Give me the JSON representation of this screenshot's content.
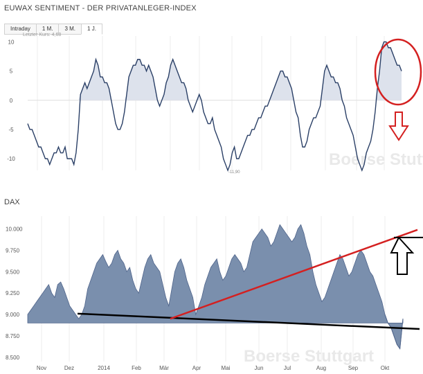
{
  "header": {
    "title": "EUWAX SENTIMENT - DER PRIVATANLEGER-INDEX",
    "tabs": [
      "Intraday",
      "1 M.",
      "3 M.",
      "1 J."
    ],
    "active_tab": "1 J.",
    "last_price": "Letzter Kurs: 4,68"
  },
  "dax_header": {
    "title": "DAX"
  },
  "watermark": "Boerse Stuttgart",
  "min_label": "-11,90",
  "colors": {
    "sentiment_line": "#2a3f66",
    "sentiment_fill": "#dde2ec",
    "dax_fill": "#7a8fad",
    "dax_stroke": "#4e638a",
    "annotation_red": "#d42020",
    "annotation_black": "#000000"
  },
  "chart_data": [
    {
      "type": "line",
      "ylim": [
        -12,
        11
      ],
      "yticks": [
        10,
        5,
        0,
        -5,
        -10
      ],
      "ytick_labels": [
        "10",
        "5",
        "0",
        "-5",
        "-10"
      ],
      "grid": "vertical",
      "series": [
        {
          "values": [
            -4,
            -5,
            -5,
            -6,
            -7,
            -8,
            -8,
            -9,
            -10,
            -10,
            -11,
            -10,
            -9,
            -9,
            -8,
            -9,
            -9,
            -8,
            -10,
            -10,
            -10,
            -11,
            -9,
            -5,
            1,
            2,
            3,
            2,
            3,
            4,
            5,
            7,
            6,
            4,
            4,
            3,
            3,
            2,
            0,
            -2,
            -4,
            -5,
            -5,
            -4,
            -2,
            1,
            4,
            5,
            6,
            6,
            7,
            7,
            6,
            6,
            5,
            6,
            5,
            4,
            2,
            0,
            -1,
            0,
            1,
            3,
            4,
            6,
            7,
            6,
            5,
            4,
            3,
            3,
            2,
            0,
            -1,
            -2,
            -1,
            0,
            1,
            0,
            -2,
            -3,
            -4,
            -4,
            -3,
            -5,
            -6,
            -7,
            -8,
            -10,
            -11,
            -12,
            -11,
            -9,
            -8,
            -10,
            -10,
            -9,
            -8,
            -7,
            -6,
            -6,
            -5,
            -5,
            -4,
            -3,
            -3,
            -2,
            -1,
            -1,
            0,
            1,
            2,
            3,
            4,
            5,
            5,
            4,
            4,
            3,
            2,
            0,
            -2,
            -3,
            -6,
            -8,
            -8,
            -7,
            -5,
            -4,
            -3,
            -3,
            -2,
            -1,
            2,
            5,
            6,
            5,
            4,
            4,
            3,
            3,
            2,
            0,
            -1,
            -3,
            -4,
            -5,
            -6,
            -8,
            -10,
            -11,
            -12,
            -11,
            -9,
            -8,
            -7,
            -5,
            -2,
            2,
            5,
            9,
            10,
            10,
            9,
            9,
            8,
            7,
            6,
            6,
            5
          ]
        }
      ]
    },
    {
      "type": "area",
      "ylim": [
        8450,
        10150
      ],
      "yticks": [
        10000,
        9750,
        9500,
        9250,
        9000,
        8750,
        8500
      ],
      "ytick_labels": [
        "10.000",
        "9.750",
        "9.500",
        "9.250",
        "9.000",
        "8.750",
        "8.500"
      ],
      "grid": "vertical",
      "x_labels": [
        "Nov",
        "Dez",
        "2014",
        "Feb",
        "Mär",
        "Apr",
        "Mai",
        "Jun",
        "Jul",
        "Aug",
        "Sep",
        "Okt"
      ],
      "series": [
        {
          "values": [
            9000,
            9050,
            9100,
            9150,
            9200,
            9250,
            9300,
            9350,
            9250,
            9200,
            9350,
            9380,
            9300,
            9200,
            9100,
            9050,
            9000,
            8950,
            9000,
            9100,
            9300,
            9400,
            9500,
            9600,
            9650,
            9700,
            9620,
            9550,
            9600,
            9700,
            9750,
            9650,
            9600,
            9500,
            9550,
            9400,
            9300,
            9250,
            9400,
            9550,
            9650,
            9700,
            9600,
            9550,
            9500,
            9350,
            9200,
            9100,
            9300,
            9500,
            9600,
            9650,
            9550,
            9400,
            9300,
            9200,
            9000,
            9100,
            9200,
            9350,
            9450,
            9550,
            9600,
            9650,
            9500,
            9400,
            9450,
            9550,
            9650,
            9700,
            9650,
            9600,
            9500,
            9550,
            9700,
            9850,
            9900,
            9950,
            10000,
            9950,
            9900,
            9800,
            9850,
            9950,
            10050,
            10000,
            9950,
            9900,
            9850,
            9900,
            10000,
            10050,
            9950,
            9800,
            9700,
            9500,
            9350,
            9250,
            9150,
            9200,
            9300,
            9400,
            9500,
            9600,
            9700,
            9650,
            9550,
            9450,
            9500,
            9600,
            9700,
            9750,
            9700,
            9600,
            9500,
            9450,
            9350,
            9250,
            9150,
            9000,
            8900,
            8850,
            8750,
            8650,
            8600,
            8950
          ]
        }
      ],
      "annotations": [
        {
          "type": "trend-line",
          "color": "red",
          "from": [
            "Mär",
            8950
          ],
          "to": [
            "Okt",
            9990
          ]
        },
        {
          "type": "trend-line",
          "color": "black",
          "from": [
            "Dez",
            9010
          ],
          "to": [
            "Okt",
            8830
          ]
        },
        {
          "type": "marker-line",
          "color": "black",
          "y": 9900
        },
        {
          "type": "arrow",
          "direction": "up",
          "color": "black"
        },
        {
          "type": "arrow",
          "direction": "down",
          "color": "red"
        },
        {
          "type": "ellipse",
          "color": "red"
        }
      ]
    }
  ]
}
